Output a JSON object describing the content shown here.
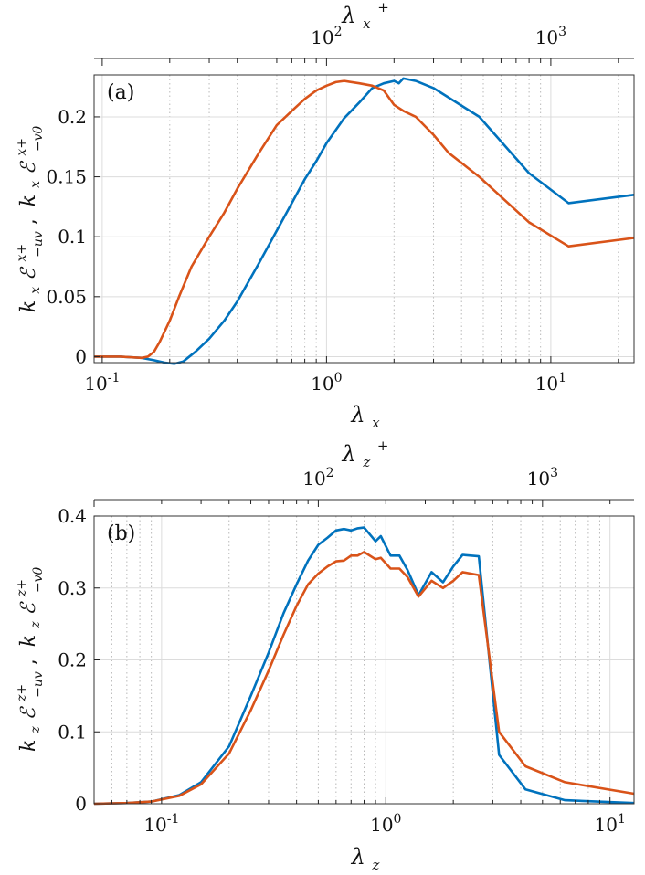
{
  "chart_data": [
    {
      "type": "line",
      "panel_label": "(a)",
      "xscale": "log",
      "xlim": [
        0.092,
        23.5
      ],
      "ylim": [
        -0.005,
        0.235
      ],
      "xlabel": {
        "base": "λ",
        "sub": "x"
      },
      "ylabel": "k_x ε^{x+}_{-uv}, k_x ε^{x+}_{-vθ}",
      "ylabel_parts": {
        "k1": "k",
        "ks1": "x",
        "E1": "ℰ",
        "sup1": "x+",
        "sub1": "−uv",
        "sep": ",",
        "k2": "k",
        "ks2": "x",
        "E2": "ℰ",
        "sup2": "x+",
        "sub2": "−vθ"
      },
      "top_axis": {
        "label": "λ",
        "label_sub": "x",
        "label_sup": "+",
        "ticks": [
          {
            "text": "10",
            "exp": "2",
            "at": 100
          },
          {
            "text": "10",
            "exp": "3",
            "at": 1000
          }
        ],
        "minor_from": 40,
        "minor_to": 9000
      },
      "top_scale": 100,
      "xticks": [
        {
          "text": "10",
          "exp": "-1",
          "at": 0.1
        },
        {
          "text": "10",
          "exp": "0",
          "at": 1
        },
        {
          "text": "10",
          "exp": "1",
          "at": 10
        }
      ],
      "yticks": [
        {
          "label": "0",
          "at": 0
        },
        {
          "label": "0.05",
          "at": 0.05
        },
        {
          "label": "0.1",
          "at": 0.1
        },
        {
          "label": "0.15",
          "at": 0.15
        },
        {
          "label": "0.2",
          "at": 0.2
        }
      ],
      "series": [
        {
          "name": "-uv",
          "color": "#0072BD",
          "x": [
            0.092,
            0.12,
            0.15,
            0.17,
            0.19,
            0.21,
            0.23,
            0.26,
            0.3,
            0.35,
            0.4,
            0.5,
            0.6,
            0.7,
            0.8,
            0.9,
            1.0,
            1.2,
            1.4,
            1.6,
            1.8,
            2.0,
            2.1,
            2.2,
            2.5,
            3.0,
            4.8,
            8.0,
            12.0,
            23.5
          ],
          "y": [
            0.0,
            0.0,
            -0.001,
            -0.003,
            -0.005,
            -0.006,
            -0.004,
            0.004,
            0.015,
            0.03,
            0.046,
            0.078,
            0.105,
            0.128,
            0.148,
            0.163,
            0.178,
            0.199,
            0.212,
            0.224,
            0.228,
            0.23,
            0.228,
            0.232,
            0.23,
            0.224,
            0.2,
            0.153,
            0.128,
            0.135
          ]
        },
        {
          "name": "-vθ",
          "color": "#D95319",
          "x": [
            0.092,
            0.12,
            0.15,
            0.16,
            0.17,
            0.18,
            0.2,
            0.22,
            0.25,
            0.3,
            0.35,
            0.4,
            0.5,
            0.6,
            0.7,
            0.8,
            0.9,
            1.0,
            1.1,
            1.2,
            1.4,
            1.6,
            1.8,
            2.0,
            2.2,
            2.5,
            3.0,
            3.5,
            4.8,
            8.0,
            12.0,
            23.5
          ],
          "y": [
            0.0,
            0.0,
            -0.001,
            0.0,
            0.004,
            0.012,
            0.03,
            0.05,
            0.075,
            0.1,
            0.12,
            0.14,
            0.17,
            0.193,
            0.205,
            0.215,
            0.222,
            0.226,
            0.229,
            0.23,
            0.228,
            0.226,
            0.222,
            0.21,
            0.205,
            0.2,
            0.185,
            0.17,
            0.15,
            0.112,
            0.092,
            0.099
          ]
        }
      ]
    },
    {
      "type": "line",
      "panel_label": "(b)",
      "xscale": "log",
      "xlim": [
        0.05,
        12.8
      ],
      "ylim": [
        0,
        0.4
      ],
      "xlabel": {
        "base": "λ",
        "sub": "z"
      },
      "ylabel": "k_z ε^{z+}_{-uv}, k_z ε^{z+}_{-vθ}",
      "ylabel_parts": {
        "k1": "k",
        "ks1": "z",
        "E1": "ℰ",
        "sup1": "z+",
        "sub1": "−uv",
        "sep": ",",
        "k2": "k",
        "ks2": "z",
        "E2": "ℰ",
        "sup2": "z+",
        "sub2": "−vθ"
      },
      "top_axis": {
        "label": "λ",
        "label_sub": "z",
        "label_sup": "+",
        "ticks": [
          {
            "text": "10",
            "exp": "2",
            "at": 100
          },
          {
            "text": "10",
            "exp": "3",
            "at": 1000
          }
        ],
        "minor_from": 20,
        "minor_to": 5000
      },
      "top_scale": 200,
      "xticks": [
        {
          "text": "10",
          "exp": "-1",
          "at": 0.1
        },
        {
          "text": "10",
          "exp": "0",
          "at": 1
        },
        {
          "text": "10",
          "exp": "1",
          "at": 10
        }
      ],
      "yticks": [
        {
          "label": "0",
          "at": 0
        },
        {
          "label": "0.1",
          "at": 0.1
        },
        {
          "label": "0.2",
          "at": 0.2
        },
        {
          "label": "0.3",
          "at": 0.3
        },
        {
          "label": "0.4",
          "at": 0.4
        }
      ],
      "series": [
        {
          "name": "-uv",
          "color": "#0072BD",
          "x": [
            0.05,
            0.07,
            0.09,
            0.12,
            0.15,
            0.2,
            0.25,
            0.3,
            0.35,
            0.4,
            0.45,
            0.5,
            0.55,
            0.6,
            0.65,
            0.7,
            0.75,
            0.8,
            0.9,
            0.95,
            1.05,
            1.15,
            1.25,
            1.4,
            1.6,
            1.8,
            2.0,
            2.2,
            2.6,
            3.2,
            4.2,
            6.3,
            12.8
          ],
          "y": [
            0.0,
            0.001,
            0.003,
            0.012,
            0.03,
            0.08,
            0.15,
            0.21,
            0.265,
            0.305,
            0.338,
            0.36,
            0.37,
            0.38,
            0.382,
            0.38,
            0.383,
            0.384,
            0.365,
            0.372,
            0.345,
            0.345,
            0.325,
            0.29,
            0.322,
            0.308,
            0.33,
            0.346,
            0.344,
            0.068,
            0.02,
            0.005,
            0.001
          ]
        },
        {
          "name": "-vθ",
          "color": "#D95319",
          "x": [
            0.05,
            0.07,
            0.09,
            0.12,
            0.15,
            0.2,
            0.25,
            0.3,
            0.35,
            0.4,
            0.45,
            0.5,
            0.55,
            0.6,
            0.65,
            0.7,
            0.75,
            0.8,
            0.9,
            0.95,
            1.05,
            1.15,
            1.25,
            1.4,
            1.6,
            1.8,
            2.0,
            2.2,
            2.6,
            3.2,
            4.2,
            6.3,
            12.8
          ],
          "y": [
            0.0,
            0.001,
            0.003,
            0.011,
            0.027,
            0.07,
            0.13,
            0.185,
            0.235,
            0.275,
            0.305,
            0.32,
            0.33,
            0.337,
            0.338,
            0.345,
            0.345,
            0.35,
            0.34,
            0.342,
            0.327,
            0.327,
            0.315,
            0.288,
            0.31,
            0.3,
            0.31,
            0.322,
            0.318,
            0.1,
            0.052,
            0.03,
            0.014
          ]
        }
      ]
    }
  ]
}
